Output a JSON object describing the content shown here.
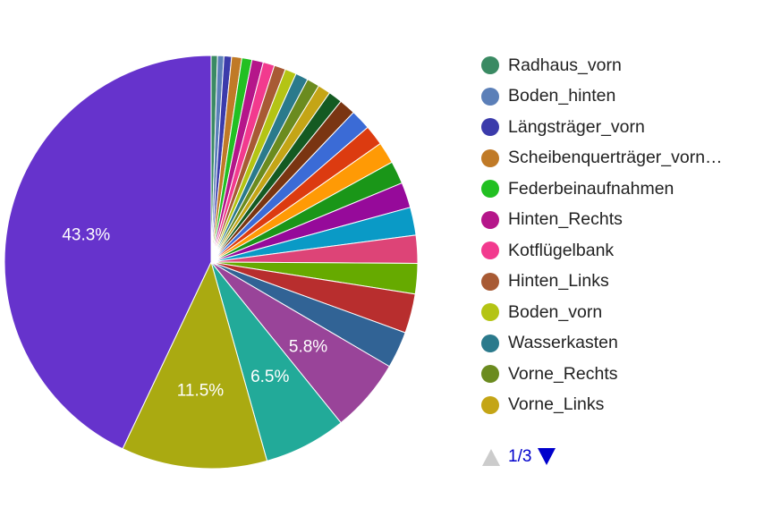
{
  "chart_data": {
    "type": "pie",
    "slices": [
      {
        "label": "Radhaus_vorn",
        "value": 0.5,
        "color": "#3a8a63"
      },
      {
        "label": "Boden_hinten",
        "value": 0.5,
        "color": "#5b7fb8"
      },
      {
        "label": "Längsträger_vorn",
        "value": 0.6,
        "color": "#3b3bab"
      },
      {
        "label": "Scheibenquerträger_vorn…",
        "value": 0.8,
        "color": "#c07a27"
      },
      {
        "label": "Federbeinaufnahmen",
        "value": 0.8,
        "color": "#22c022"
      },
      {
        "label": "Hinten_Rechts",
        "value": 0.9,
        "color": "#b5168a"
      },
      {
        "label": "Kotflügelbank",
        "value": 0.9,
        "color": "#f23a8e"
      },
      {
        "label": "Hinten_Links",
        "value": 0.9,
        "color": "#a85a34"
      },
      {
        "label": "Boden_vorn",
        "value": 0.9,
        "color": "#b4c414"
      },
      {
        "label": "Wasserkasten",
        "value": 1.0,
        "color": "#2b7a8c"
      },
      {
        "label": "Vorne_Rechts",
        "value": 1.0,
        "color": "#6b8b1f"
      },
      {
        "label": "Vorne_Links",
        "value": 1.0,
        "color": "#c4a516"
      },
      {
        "label": "",
        "value": 1.1,
        "color": "#145a22"
      },
      {
        "label": "",
        "value": 1.3,
        "color": "#7a3512"
      },
      {
        "label": "",
        "value": 1.6,
        "color": "#3b6bd6"
      },
      {
        "label": "",
        "value": 1.6,
        "color": "#dc3b10"
      },
      {
        "label": "",
        "value": 1.7,
        "color": "#ff9a05"
      },
      {
        "label": "",
        "value": 1.8,
        "color": "#1a9618"
      },
      {
        "label": "",
        "value": 2.0,
        "color": "#960a9a"
      },
      {
        "label": "",
        "value": 2.2,
        "color": "#0a9ac6"
      },
      {
        "label": "",
        "value": 2.2,
        "color": "#dd4477"
      },
      {
        "label": "",
        "value": 2.4,
        "color": "#66aa00"
      },
      {
        "label": "",
        "value": 3.1,
        "color": "#b82e2e"
      },
      {
        "label": "",
        "value": 2.9,
        "color": "#316395"
      },
      {
        "label": "",
        "value": 5.8,
        "color": "#994499",
        "display": "5.8%"
      },
      {
        "label": "",
        "value": 6.5,
        "color": "#22aa99",
        "display": "6.5%"
      },
      {
        "label": "",
        "value": 11.5,
        "color": "#aaaa11",
        "display": "11.5%"
      },
      {
        "label": "",
        "value": 43.3,
        "color": "#6633cc",
        "display": "43.3%"
      }
    ]
  },
  "legend": {
    "items": [
      {
        "label": "Radhaus_vorn",
        "color": "#3a8a63"
      },
      {
        "label": "Boden_hinten",
        "color": "#5b7fb8"
      },
      {
        "label": "Längsträger_vorn",
        "color": "#3b3bab"
      },
      {
        "label": "Scheibenquerträger_vorn…",
        "color": "#c07a27"
      },
      {
        "label": "Federbeinaufnahmen",
        "color": "#22c022"
      },
      {
        "label": "Hinten_Rechts",
        "color": "#b5168a"
      },
      {
        "label": "Kotflügelbank",
        "color": "#f23a8e"
      },
      {
        "label": "Hinten_Links",
        "color": "#a85a34"
      },
      {
        "label": "Boden_vorn",
        "color": "#b4c414"
      },
      {
        "label": "Wasserkasten",
        "color": "#2b7a8c"
      },
      {
        "label": "Vorne_Rechts",
        "color": "#6b8b1f"
      },
      {
        "label": "Vorne_Links",
        "color": "#c4a516"
      }
    ]
  },
  "pager": {
    "text": "1/3",
    "prev_icon": "triangle-up-icon",
    "next_icon": "triangle-down-icon",
    "prev_color": "#cccccc",
    "next_color": "#0000cc"
  }
}
